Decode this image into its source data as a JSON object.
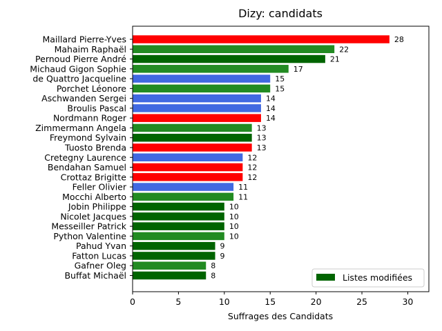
{
  "chart_data": {
    "type": "bar",
    "orientation": "horizontal",
    "title": "Dizy: candidats",
    "xlabel": "Suffrages des Candidats",
    "ylabel": "",
    "xlim": [
      0,
      32.3
    ],
    "xticks": [
      0,
      5,
      10,
      15,
      20,
      25,
      30
    ],
    "grid": false,
    "categories": [
      "Maillard Pierre-Yves",
      "Mahaim Raphaël",
      "Pernoud Pierre André",
      "Michaud Gigon Sophie",
      "de Quattro Jacqueline",
      "Porchet Léonore",
      "Aschwanden Sergei",
      "Broulis Pascal",
      "Nordmann Roger",
      "Zimmermann Angela",
      "Freymond Sylvain",
      "Tuosto Brenda",
      "Cretegny Laurence",
      "Bendahan Samuel",
      "Crottaz Brigitte",
      "Feller Olivier",
      "Mocchi Alberto",
      "Jobin Philippe",
      "Nicolet Jacques",
      "Messeiller Patrick",
      "Python Valentine",
      "Pahud Yvan",
      "Fatton Lucas",
      "Gafner Oleg",
      "Buffat Michaël"
    ],
    "values": [
      28,
      22,
      21,
      17,
      15,
      15,
      14,
      14,
      14,
      13,
      13,
      13,
      12,
      12,
      12,
      11,
      11,
      10,
      10,
      10,
      10,
      9,
      9,
      8,
      8
    ],
    "colors": [
      "#ff0000",
      "#228b22",
      "#006400",
      "#228b22",
      "#4169e1",
      "#228b22",
      "#4169e1",
      "#4169e1",
      "#ff0000",
      "#228b22",
      "#006400",
      "#ff0000",
      "#4169e1",
      "#ff0000",
      "#ff0000",
      "#4169e1",
      "#228b22",
      "#006400",
      "#006400",
      "#006400",
      "#228b22",
      "#006400",
      "#006400",
      "#228b22",
      "#006400"
    ],
    "legend": {
      "position": "lower right",
      "entries": [
        {
          "label": "Listes modifiées",
          "color": "#006400"
        }
      ]
    }
  }
}
